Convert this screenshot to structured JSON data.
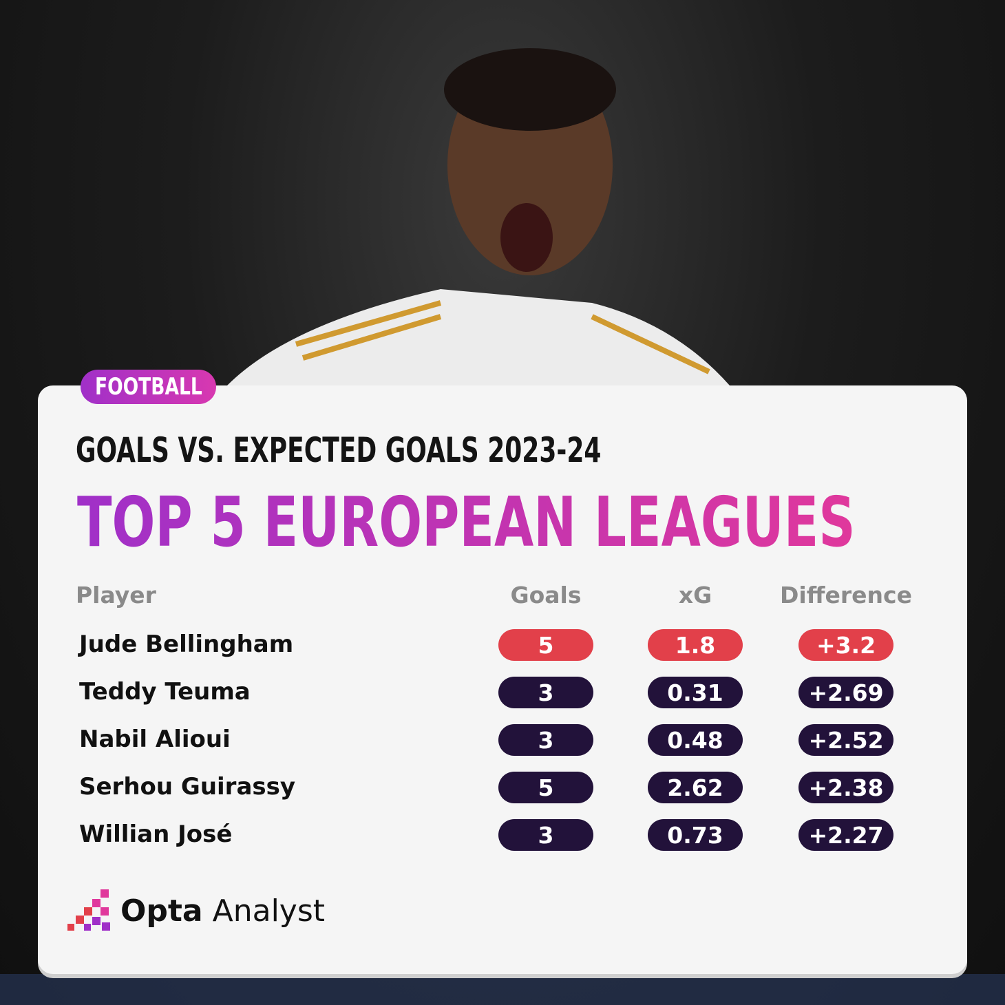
{
  "tag": "FOOTBALL",
  "header": {
    "subtitle": "GOALS VS. EXPECTED GOALS 2023-24",
    "title": "TOP 5 EUROPEAN LEAGUES"
  },
  "table": {
    "columns": [
      "Player",
      "Goals",
      "xG",
      "Difference"
    ],
    "rows": [
      [
        "Jude Bellingham",
        "5",
        "1.8",
        "+3.2"
      ],
      [
        "Teddy Teuma",
        "3",
        "0.31",
        "+2.69"
      ],
      [
        "Nabil Alioui",
        "3",
        "0.48",
        "+2.52"
      ],
      [
        "Serhou Guirassy",
        "5",
        "2.62",
        "+2.38"
      ],
      [
        "Willian José",
        "3",
        "0.73",
        "+2.27"
      ]
    ]
  },
  "brand": {
    "bold": "Opta",
    "light": "Analyst"
  }
}
